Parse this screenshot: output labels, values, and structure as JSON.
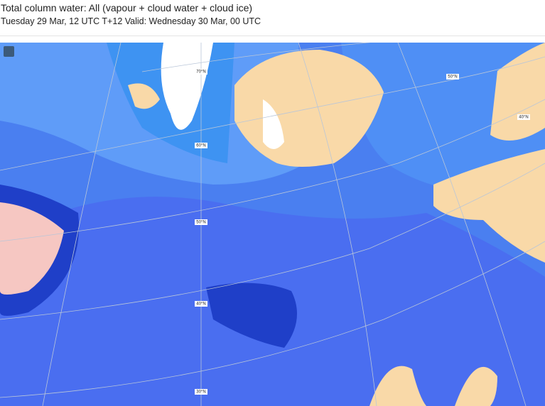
{
  "header": {
    "title": "Total column water: All (vapour + cloud water + cloud ice)",
    "subtitle": "Tuesday 29 Mar, 12 UTC T+12 Valid: Wednesday 30 Mar, 00 UTC"
  },
  "map": {
    "latitude_labels": [
      "70°N",
      "60°N",
      "50°N",
      "40°N",
      "30°N",
      "50°N",
      "40°N"
    ]
  }
}
